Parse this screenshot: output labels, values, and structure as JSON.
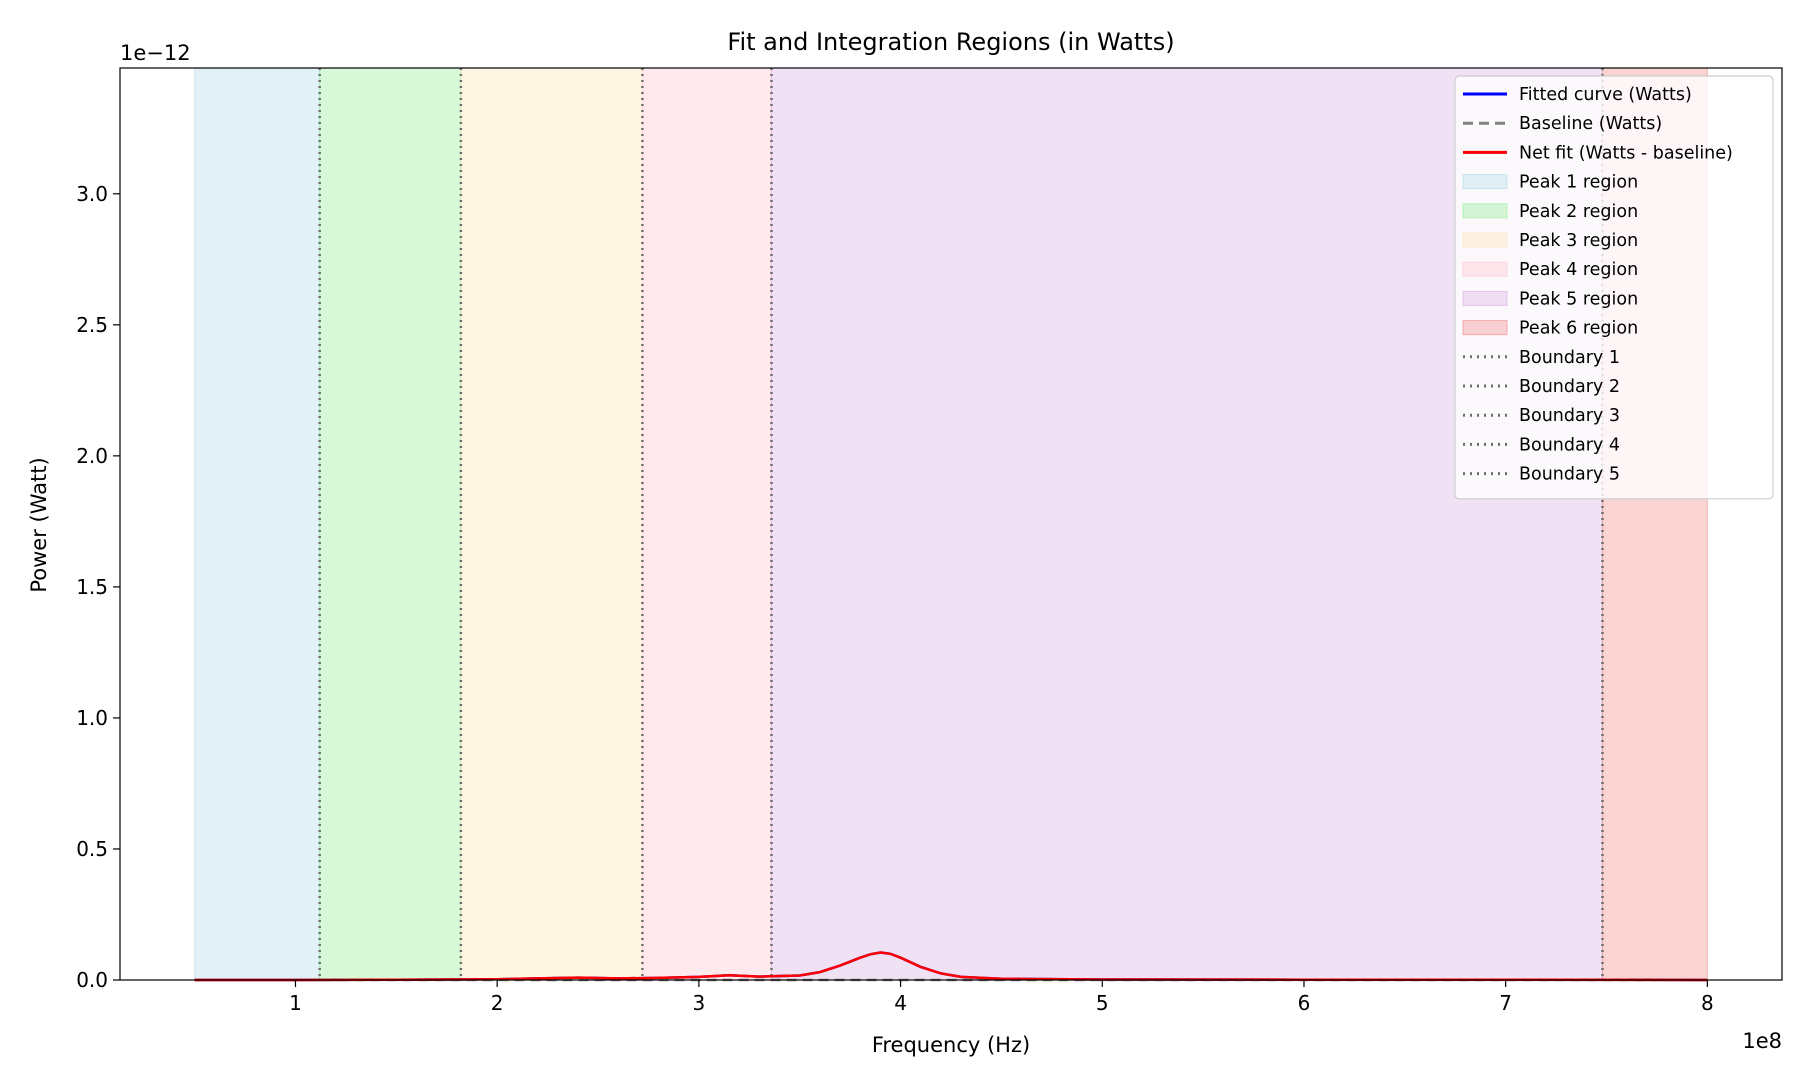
{
  "chart_data": {
    "type": "area",
    "title": "Fit and Integration Regions (in Watts)",
    "xlabel": "Frequency (Hz)",
    "ylabel": "Power (Watt)",
    "x_offset_label": "1e8",
    "y_offset_label": "1e−12",
    "xlim": [
      0.13,
      8.37
    ],
    "ylim": [
      0,
      3.48
    ],
    "x_ticks": [
      1,
      2,
      3,
      4,
      5,
      6,
      7,
      8
    ],
    "x_tick_labels": [
      "1",
      "2",
      "3",
      "4",
      "5",
      "6",
      "7",
      "8"
    ],
    "y_ticks": [
      0,
      0.5,
      1.0,
      1.5,
      2.0,
      2.5,
      3.0
    ],
    "y_tick_labels": [
      "0.0",
      "0.5",
      "1.0",
      "1.5",
      "2.0",
      "2.5",
      "3.0"
    ],
    "grid": false,
    "legend_position": "top-right",
    "regions": [
      {
        "name": "Peak 1 region",
        "x0": 0.5,
        "x1": 1.12,
        "color": "#add8e6"
      },
      {
        "name": "Peak 2 region",
        "x0": 1.12,
        "x1": 1.82,
        "color": "#90ee90"
      },
      {
        "name": "Peak 3 region",
        "x0": 1.82,
        "x1": 2.72,
        "color": "#fde2b0"
      },
      {
        "name": "Peak 4 region",
        "x0": 2.72,
        "x1": 3.36,
        "color": "#ffc0cb"
      },
      {
        "name": "Peak 5 region",
        "x0": 3.36,
        "x1": 7.48,
        "color": "#d8a8df"
      },
      {
        "name": "Peak 6 region",
        "x0": 7.48,
        "x1": 8.0,
        "color": "#f08080"
      }
    ],
    "boundaries": [
      {
        "name": "Boundary 1",
        "x": 1.12
      },
      {
        "name": "Boundary 2",
        "x": 1.82
      },
      {
        "name": "Boundary 3",
        "x": 2.72
      },
      {
        "name": "Boundary 4",
        "x": 3.36
      },
      {
        "name": "Boundary 5",
        "x": 7.48
      }
    ],
    "series": [
      {
        "name": "Fitted curve (Watts)",
        "color": "#0000ff",
        "style": "solid",
        "x": [
          0.5,
          1.0,
          1.5,
          2.0,
          2.2,
          2.4,
          2.6,
          2.8,
          3.0,
          3.15,
          3.3,
          3.5,
          3.6,
          3.7,
          3.8,
          3.85,
          3.9,
          3.95,
          4.0,
          4.1,
          4.2,
          4.3,
          4.5,
          5.0,
          6.0,
          7.0,
          8.0
        ],
        "y": [
          0,
          0,
          0.001,
          0.003,
          0.006,
          0.009,
          0.006,
          0.008,
          0.012,
          0.018,
          0.013,
          0.017,
          0.03,
          0.055,
          0.085,
          0.098,
          0.105,
          0.1,
          0.085,
          0.05,
          0.025,
          0.012,
          0.005,
          0.002,
          0.001,
          0.001,
          0
        ]
      },
      {
        "name": "Baseline (Watts)",
        "color": "#808080",
        "style": "dashed",
        "x": [
          0.5,
          8.0
        ],
        "y": [
          0,
          0
        ]
      },
      {
        "name": "Net fit (Watts - baseline)",
        "color": "#ff0000",
        "style": "solid",
        "x": [
          0.5,
          1.0,
          1.5,
          2.0,
          2.2,
          2.4,
          2.6,
          2.8,
          3.0,
          3.15,
          3.3,
          3.5,
          3.6,
          3.7,
          3.8,
          3.85,
          3.9,
          3.95,
          4.0,
          4.1,
          4.2,
          4.3,
          4.5,
          5.0,
          6.0,
          7.0,
          8.0
        ],
        "y": [
          0,
          0,
          0.001,
          0.003,
          0.006,
          0.009,
          0.006,
          0.008,
          0.012,
          0.018,
          0.013,
          0.017,
          0.03,
          0.055,
          0.085,
          0.098,
          0.105,
          0.1,
          0.085,
          0.05,
          0.025,
          0.012,
          0.005,
          0.002,
          0.001,
          0.001,
          0
        ]
      }
    ]
  }
}
